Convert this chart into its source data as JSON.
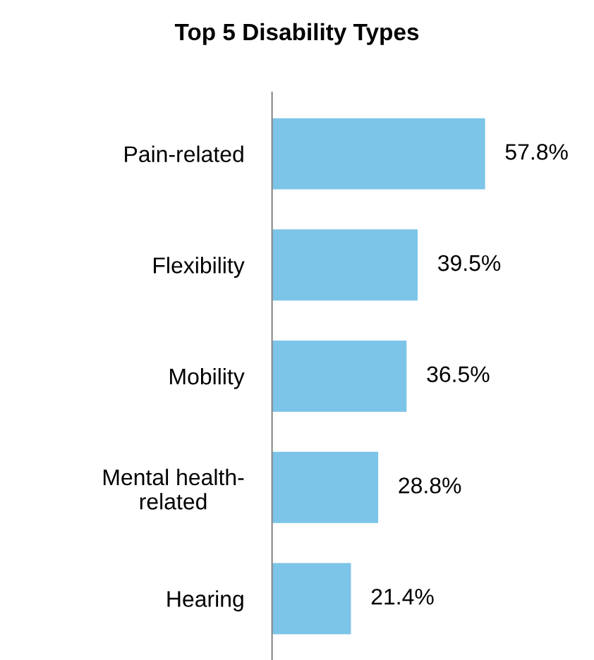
{
  "chart_data": {
    "type": "bar",
    "orientation": "horizontal",
    "title": "Top 5 Disability Types",
    "categories": [
      "Pain-related",
      "Flexibility",
      "Mobility",
      "Mental health-\nrelated",
      "Hearing"
    ],
    "values": [
      57.8,
      39.5,
      36.5,
      28.8,
      21.4
    ],
    "value_labels": [
      "57.8%",
      "39.5%",
      "36.5%",
      "28.8%",
      "21.4%"
    ],
    "color": "#7cc4e8",
    "grid": false,
    "legend": false,
    "tick_labels": "y"
  }
}
